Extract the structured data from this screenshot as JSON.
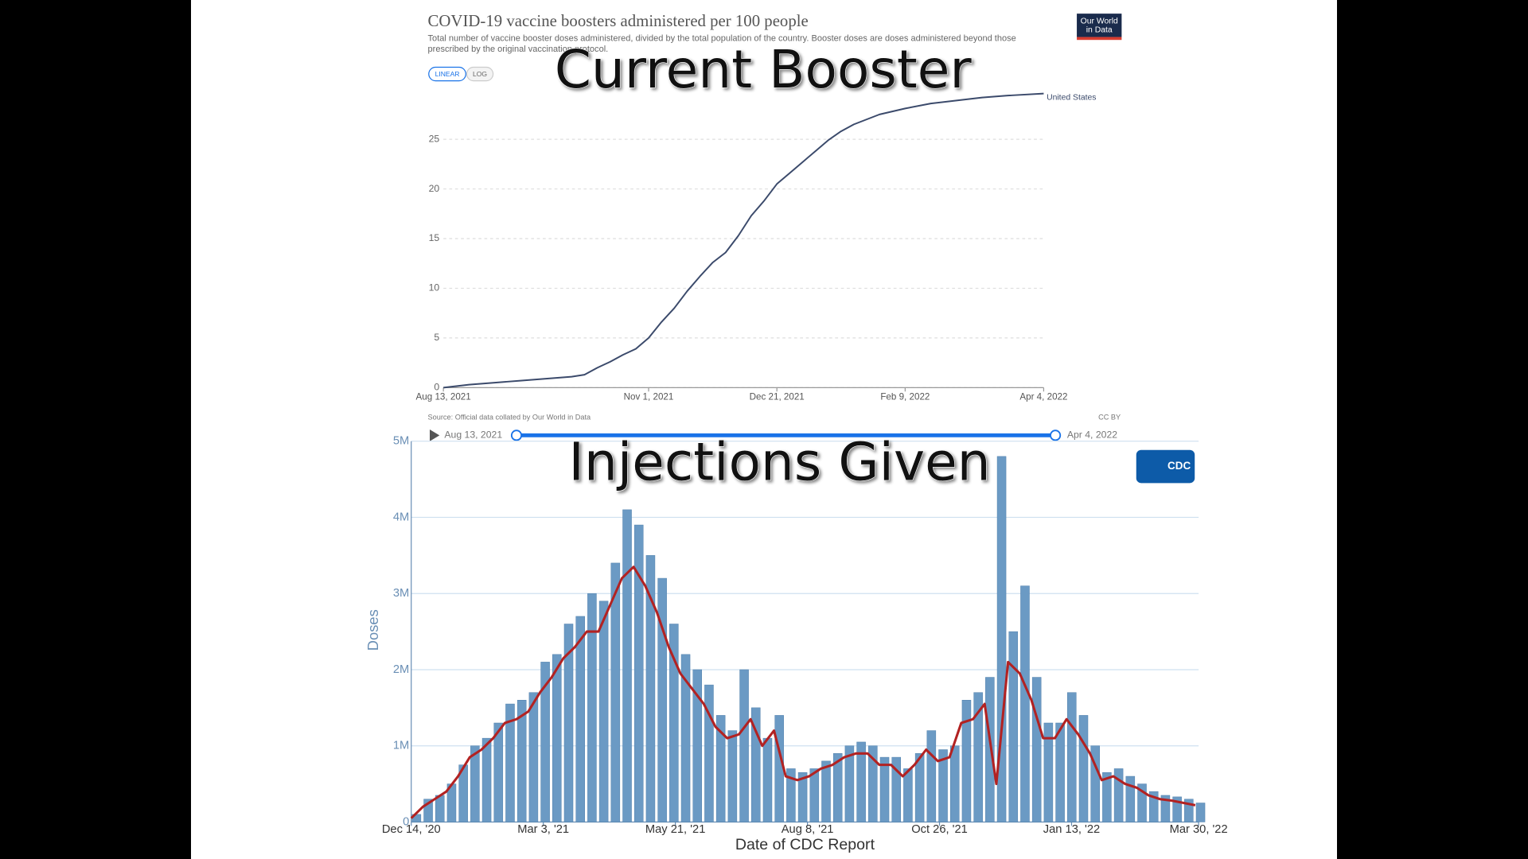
{
  "chart_data": [
    {
      "type": "line",
      "title": "COVID-19 vaccine boosters administered per 100 people",
      "subtitle": "Total number of vaccine booster doses administered, divided by the total population of the country. Booster doses are doses administered beyond those prescribed by the original vaccination protocol.",
      "annotation": "Current Booster",
      "logo": "Our World in Data",
      "scale_buttons": [
        "LINEAR",
        "LOG"
      ],
      "source": "Source: Official data collated by Our World in Data",
      "license": "CC BY",
      "slider": {
        "start": "Aug 13, 2021",
        "end": "Apr 4, 2022"
      },
      "x": [
        "2021-08-13",
        "2021-08-23",
        "2021-09-02",
        "2021-09-12",
        "2021-09-22",
        "2021-10-02",
        "2021-10-07",
        "2021-10-12",
        "2021-10-17",
        "2021-10-22",
        "2021-10-27",
        "2021-11-01",
        "2021-11-06",
        "2021-11-11",
        "2021-11-16",
        "2021-11-21",
        "2021-11-26",
        "2021-12-01",
        "2021-12-06",
        "2021-12-11",
        "2021-12-16",
        "2021-12-21",
        "2021-12-26",
        "2021-12-31",
        "2022-01-05",
        "2022-01-10",
        "2022-01-15",
        "2022-01-20",
        "2022-01-30",
        "2022-02-09",
        "2022-02-19",
        "2022-03-01",
        "2022-03-11",
        "2022-03-21",
        "2022-04-04"
      ],
      "series": [
        {
          "name": "United States",
          "color": "#3b4a6b",
          "values": [
            0,
            0.3,
            0.5,
            0.7,
            0.9,
            1.1,
            1.3,
            2.0,
            2.6,
            3.3,
            3.9,
            5.0,
            6.6,
            8.0,
            9.7,
            11.2,
            12.6,
            13.6,
            15.3,
            17.3,
            18.8,
            20.5,
            21.6,
            22.7,
            23.8,
            24.9,
            25.8,
            26.5,
            27.5,
            28.1,
            28.6,
            28.9,
            29.2,
            29.4,
            29.6
          ]
        }
      ],
      "xlim": [
        "2021-08-13",
        "2022-04-04"
      ],
      "xticks": [
        {
          "value": "2021-08-13",
          "label": "Aug 13, 2021"
        },
        {
          "value": "2021-11-01",
          "label": "Nov 1, 2021"
        },
        {
          "value": "2021-12-21",
          "label": "Dec 21, 2021"
        },
        {
          "value": "2022-02-09",
          "label": "Feb 9, 2022"
        },
        {
          "value": "2022-04-04",
          "label": "Apr 4, 2022"
        }
      ],
      "ylim": [
        0,
        30
      ],
      "yticks": [
        0,
        5,
        10,
        15,
        20,
        25
      ],
      "grid": true
    },
    {
      "type": "bar",
      "annotation": "Injections Given",
      "logo": "CDC",
      "ylabel": "Doses",
      "xlabel": "Date of CDC Report",
      "x": [
        "2020-12-14",
        "2020-12-21",
        "2020-12-28",
        "2021-01-04",
        "2021-01-11",
        "2021-01-18",
        "2021-01-25",
        "2021-02-01",
        "2021-02-08",
        "2021-02-15",
        "2021-02-22",
        "2021-03-01",
        "2021-03-08",
        "2021-03-15",
        "2021-03-22",
        "2021-03-29",
        "2021-04-05",
        "2021-04-12",
        "2021-04-19",
        "2021-04-26",
        "2021-05-03",
        "2021-05-10",
        "2021-05-17",
        "2021-05-24",
        "2021-05-31",
        "2021-06-07",
        "2021-06-14",
        "2021-06-21",
        "2021-06-28",
        "2021-07-05",
        "2021-07-12",
        "2021-07-19",
        "2021-07-26",
        "2021-08-02",
        "2021-08-09",
        "2021-08-16",
        "2021-08-23",
        "2021-08-30",
        "2021-09-06",
        "2021-09-13",
        "2021-09-20",
        "2021-09-27",
        "2021-10-04",
        "2021-10-11",
        "2021-10-18",
        "2021-10-25",
        "2021-11-01",
        "2021-11-08",
        "2021-11-15",
        "2021-11-22",
        "2021-11-29",
        "2021-12-06",
        "2021-12-13",
        "2021-12-20",
        "2021-12-27",
        "2022-01-03",
        "2022-01-10",
        "2022-01-17",
        "2022-01-24",
        "2022-01-31",
        "2022-02-07",
        "2022-02-14",
        "2022-02-21",
        "2022-02-28",
        "2022-03-07",
        "2022-03-14",
        "2022-03-21",
        "2022-03-28"
      ],
      "series": [
        {
          "type": "bar",
          "color": "#6b9ac4",
          "values": [
            100000,
            300000,
            350000,
            500000,
            750000,
            1000000,
            1100000,
            1300000,
            1550000,
            1600000,
            1700000,
            2100000,
            2200000,
            2600000,
            2700000,
            3000000,
            2900000,
            3400000,
            4100000,
            3900000,
            3500000,
            3200000,
            2600000,
            2200000,
            2000000,
            1800000,
            1400000,
            1200000,
            2000000,
            1500000,
            1100000,
            1400000,
            700000,
            650000,
            700000,
            800000,
            900000,
            1000000,
            1050000,
            1000000,
            850000,
            850000,
            700000,
            900000,
            1200000,
            950000,
            1000000,
            1600000,
            1700000,
            1900000,
            4800000,
            2500000,
            3100000,
            1900000,
            1300000,
            1300000,
            1700000,
            1400000,
            1000000,
            650000,
            700000,
            600000,
            500000,
            400000,
            350000,
            330000,
            300000,
            250000
          ]
        },
        {
          "type": "line",
          "color": "#b22222",
          "values": [
            50000,
            200000,
            300000,
            400000,
            600000,
            850000,
            950000,
            1100000,
            1300000,
            1350000,
            1450000,
            1700000,
            1900000,
            2150000,
            2300000,
            2500000,
            2500000,
            2850000,
            3200000,
            3350000,
            3100000,
            2750000,
            2300000,
            1950000,
            1750000,
            1550000,
            1250000,
            1100000,
            1150000,
            1350000,
            1000000,
            1200000,
            600000,
            550000,
            600000,
            700000,
            750000,
            850000,
            900000,
            900000,
            750000,
            750000,
            600000,
            750000,
            950000,
            800000,
            850000,
            1300000,
            1350000,
            1550000,
            500000,
            2100000,
            1950000,
            1600000,
            1100000,
            1100000,
            1350000,
            1150000,
            900000,
            550000,
            600000,
            500000,
            450000,
            350000,
            300000,
            280000,
            250000,
            220000
          ]
        }
      ],
      "xlim": [
        "2020-12-14",
        "2022-03-30"
      ],
      "xticks": [
        {
          "value": "2020-12-14",
          "label": "Dec 14, '20"
        },
        {
          "value": "2021-03-03",
          "label": "Mar 3, '21"
        },
        {
          "value": "2021-05-21",
          "label": "May 21, '21"
        },
        {
          "value": "2021-08-08",
          "label": "Aug 8, '21"
        },
        {
          "value": "2021-10-26",
          "label": "Oct 26, '21"
        },
        {
          "value": "2022-01-13",
          "label": "Jan 13, '22"
        },
        {
          "value": "2022-03-30",
          "label": "Mar 30, '22"
        }
      ],
      "ylim": [
        0,
        5000000
      ],
      "yticks": [
        0,
        {
          "value": 1000000,
          "label": "1M"
        },
        {
          "value": 2000000,
          "label": "2M"
        },
        {
          "value": 3000000,
          "label": "3M"
        },
        {
          "value": 4000000,
          "label": "4M"
        },
        {
          "value": 5000000,
          "label": "5M"
        }
      ],
      "grid": true
    }
  ]
}
